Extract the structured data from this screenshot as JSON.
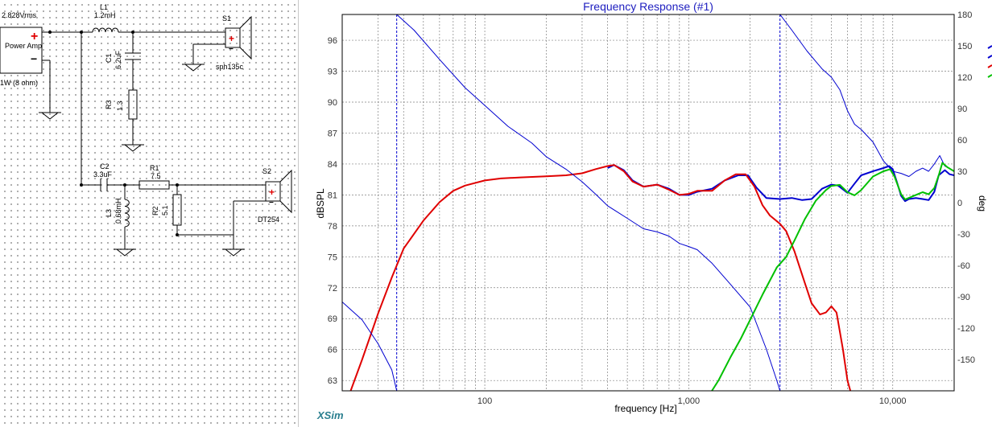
{
  "schematic": {
    "source_voltage": "2.828Vrms",
    "source_name": "Power Amp",
    "source_power": "1W (8 ohm)",
    "components": [
      {
        "ref": "L1",
        "value": "1.2mH"
      },
      {
        "ref": "C1",
        "value": "6.2uF"
      },
      {
        "ref": "R3",
        "value": "1.3"
      },
      {
        "ref": "C2",
        "value": "3.3uF"
      },
      {
        "ref": "R1",
        "value": "7.5"
      },
      {
        "ref": "L3",
        "value": "0.68mH"
      },
      {
        "ref": "R2",
        "value": "5.1"
      }
    ],
    "speakers": [
      {
        "ref": "S1",
        "model": "sph135c"
      },
      {
        "ref": "S2",
        "model": "DT254"
      }
    ]
  },
  "chart": {
    "logo": "XSim",
    "title": "Frequency Response (#1)",
    "xlabel": "frequency [Hz]",
    "ylabel_left": "dBSPL",
    "ylabel_right": "deg",
    "colors": {
      "title": "#2020c0",
      "grid": "#808080",
      "blue": "#0000d0",
      "red": "#e00000",
      "green": "#00c000",
      "logo": "#2a7f8f"
    }
  },
  "chart_data": {
    "type": "line",
    "title": "Frequency Response (#1)",
    "xlabel": "frequency [Hz]",
    "ylabel": "dBSPL",
    "y2label": "deg",
    "xscale": "log",
    "xlim": [
      20,
      20000
    ],
    "ylim": [
      62,
      98.5
    ],
    "y2lim": [
      -180,
      180
    ],
    "x_ticks": [
      {
        "value": 100,
        "label": "100"
      },
      {
        "value": 1000,
        "label": "1,000"
      },
      {
        "value": 10000,
        "label": "10,000"
      }
    ],
    "y_ticks": [
      63,
      66,
      69,
      72,
      75,
      78,
      81,
      84,
      87,
      90,
      93,
      96
    ],
    "y2_ticks": [
      -150,
      -120,
      -90,
      -60,
      -30,
      0,
      30,
      60,
      90,
      120,
      150,
      180
    ],
    "vlines": [
      37,
      2800
    ],
    "series": [
      {
        "color": "#0000d0",
        "width": 2,
        "axis": "left",
        "points": [
          [
            400,
            83.6
          ],
          [
            430,
            83.9
          ],
          [
            480,
            83.4
          ],
          [
            530,
            82.4
          ],
          [
            600,
            81.8
          ],
          [
            700,
            82.0
          ],
          [
            800,
            81.6
          ],
          [
            900,
            81.0
          ],
          [
            1000,
            81.0
          ],
          [
            1100,
            81.3
          ],
          [
            1300,
            81.6
          ],
          [
            1500,
            82.4
          ],
          [
            1750,
            82.9
          ],
          [
            1950,
            82.9
          ],
          [
            2150,
            81.7
          ],
          [
            2400,
            80.7
          ],
          [
            2800,
            80.6
          ],
          [
            3200,
            80.7
          ],
          [
            3600,
            80.5
          ],
          [
            4000,
            80.6
          ],
          [
            4500,
            81.6
          ],
          [
            5000,
            82.0
          ],
          [
            5400,
            81.9
          ],
          [
            6000,
            81.2
          ],
          [
            6500,
            82.1
          ],
          [
            7000,
            82.9
          ],
          [
            8000,
            83.3
          ],
          [
            9000,
            83.6
          ],
          [
            9600,
            83.8
          ],
          [
            10000,
            83.5
          ],
          [
            10500,
            82.2
          ],
          [
            11000,
            80.9
          ],
          [
            11500,
            80.4
          ],
          [
            12000,
            80.6
          ],
          [
            13000,
            80.7
          ],
          [
            14000,
            80.6
          ],
          [
            15000,
            80.5
          ],
          [
            16000,
            81.3
          ],
          [
            16800,
            82.9
          ],
          [
            18000,
            83.4
          ],
          [
            19000,
            83.0
          ],
          [
            20000,
            82.9
          ]
        ]
      },
      {
        "color": "#e00000",
        "width": 2,
        "axis": "left",
        "points": [
          [
            20,
            60
          ],
          [
            22,
            62
          ],
          [
            25,
            65
          ],
          [
            30,
            69.5
          ],
          [
            35,
            73
          ],
          [
            40,
            75.8
          ],
          [
            50,
            78.5
          ],
          [
            60,
            80.3
          ],
          [
            70,
            81.4
          ],
          [
            80,
            81.9
          ],
          [
            100,
            82.4
          ],
          [
            120,
            82.6
          ],
          [
            150,
            82.7
          ],
          [
            200,
            82.8
          ],
          [
            250,
            82.9
          ],
          [
            300,
            83.1
          ],
          [
            350,
            83.5
          ],
          [
            400,
            83.8
          ],
          [
            430,
            83.9
          ],
          [
            480,
            83.3
          ],
          [
            530,
            82.3
          ],
          [
            600,
            81.8
          ],
          [
            700,
            82.0
          ],
          [
            800,
            81.5
          ],
          [
            900,
            81.0
          ],
          [
            1000,
            81.1
          ],
          [
            1100,
            81.4
          ],
          [
            1300,
            81.4
          ],
          [
            1500,
            82.4
          ],
          [
            1700,
            83.0
          ],
          [
            1900,
            83.0
          ],
          [
            2100,
            81.8
          ],
          [
            2300,
            80.0
          ],
          [
            2500,
            79.0
          ],
          [
            2800,
            78.2
          ],
          [
            3000,
            77.5
          ],
          [
            3300,
            75.5
          ],
          [
            3700,
            72.5
          ],
          [
            4000,
            70.5
          ],
          [
            4400,
            69.4
          ],
          [
            4700,
            69.6
          ],
          [
            5000,
            70.2
          ],
          [
            5300,
            69.6
          ],
          [
            5700,
            66.0
          ],
          [
            6000,
            63.0
          ],
          [
            6200,
            62.0
          ]
        ]
      },
      {
        "color": "#0000d0",
        "width": 1,
        "axis": "right",
        "points": [
          [
            20,
            -95
          ],
          [
            25,
            -112
          ],
          [
            30,
            -135
          ],
          [
            35,
            -160
          ],
          [
            37,
            -180
          ]
        ]
      },
      {
        "color": "#0000d0",
        "width": 1,
        "axis": "right",
        "points": [
          [
            37,
            180
          ],
          [
            45,
            165
          ],
          [
            60,
            137
          ],
          [
            80,
            110
          ],
          [
            100,
            93
          ],
          [
            130,
            73
          ],
          [
            170,
            57
          ],
          [
            200,
            44
          ],
          [
            250,
            32
          ],
          [
            300,
            20
          ],
          [
            350,
            8
          ],
          [
            400,
            -3
          ],
          [
            500,
            -15
          ],
          [
            600,
            -25
          ],
          [
            700,
            -28
          ],
          [
            800,
            -32
          ],
          [
            900,
            -39
          ],
          [
            1000,
            -42
          ],
          [
            1100,
            -45
          ],
          [
            1300,
            -58
          ],
          [
            1600,
            -78
          ],
          [
            2000,
            -100
          ],
          [
            2400,
            -140
          ],
          [
            2700,
            -170
          ],
          [
            2800,
            -180
          ]
        ]
      },
      {
        "color": "#0000d0",
        "width": 1,
        "axis": "right",
        "points": [
          [
            2800,
            180
          ],
          [
            3200,
            165
          ],
          [
            3800,
            145
          ],
          [
            4500,
            128
          ],
          [
            5000,
            120
          ],
          [
            5500,
            108
          ],
          [
            6000,
            88
          ],
          [
            6500,
            75
          ],
          [
            7000,
            70
          ],
          [
            8000,
            58
          ],
          [
            9000,
            40
          ],
          [
            10000,
            30
          ],
          [
            11000,
            28
          ],
          [
            12000,
            25
          ],
          [
            13000,
            30
          ],
          [
            14000,
            33
          ],
          [
            15000,
            30
          ],
          [
            16000,
            37
          ],
          [
            17000,
            45
          ],
          [
            18000,
            35
          ],
          [
            20000,
            30
          ]
        ]
      },
      {
        "color": "#00c000",
        "width": 2,
        "axis": "right",
        "points": [
          [
            1250,
            -185
          ],
          [
            1400,
            -170
          ],
          [
            1600,
            -148
          ],
          [
            1800,
            -130
          ],
          [
            2000,
            -112
          ],
          [
            2300,
            -88
          ],
          [
            2700,
            -62
          ],
          [
            3000,
            -52
          ],
          [
            3300,
            -36
          ],
          [
            3700,
            -16
          ],
          [
            4200,
            2
          ],
          [
            4700,
            12
          ],
          [
            5000,
            16
          ],
          [
            5500,
            17
          ],
          [
            6000,
            10
          ],
          [
            6500,
            7
          ],
          [
            7000,
            12
          ],
          [
            8000,
            25
          ],
          [
            9000,
            30
          ],
          [
            9700,
            32
          ],
          [
            10200,
            25
          ],
          [
            11000,
            8
          ],
          [
            11500,
            3
          ],
          [
            12500,
            6
          ],
          [
            14000,
            10
          ],
          [
            15000,
            8
          ],
          [
            16000,
            14
          ],
          [
            16800,
            26
          ],
          [
            17500,
            38
          ],
          [
            18500,
            34
          ],
          [
            20000,
            30
          ]
        ]
      }
    ]
  }
}
